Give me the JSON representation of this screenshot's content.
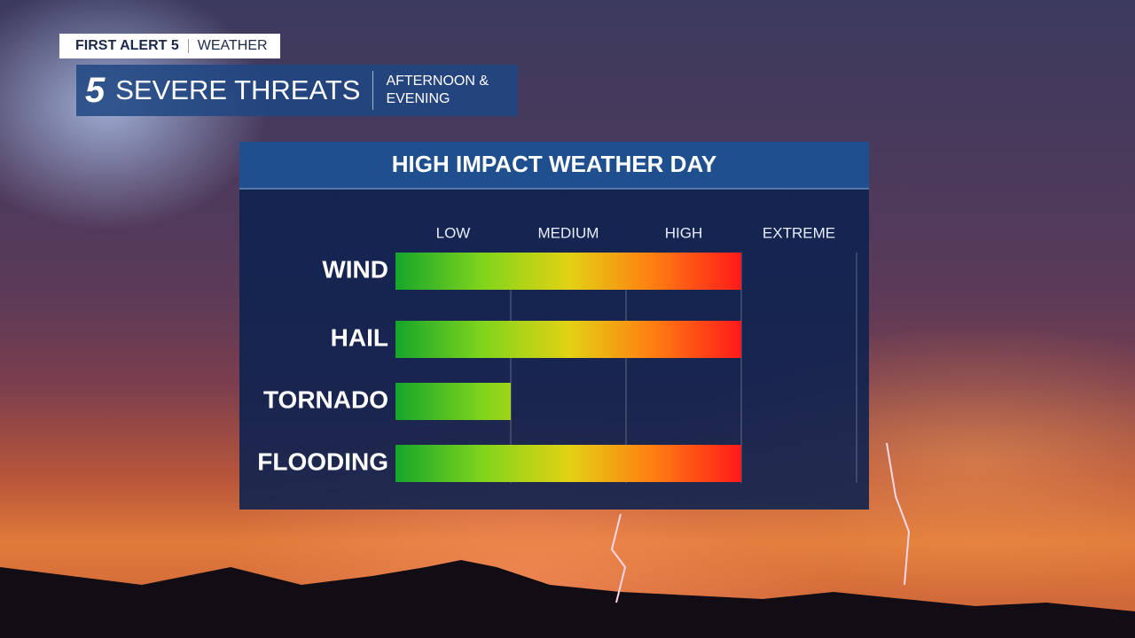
{
  "header": {
    "tag": "FIRST ALERT 5",
    "tag2": "WEATHER",
    "logo": "5",
    "title": "SEVERE THREATS",
    "subtitle": "AFTERNOON & EVENING"
  },
  "chart_data": {
    "type": "hbar",
    "title": "HIGH IMPACT WEATHER DAY",
    "categories": [
      "WIND",
      "HAIL",
      "TORNADO",
      "FLOODING"
    ],
    "values": [
      3,
      3,
      1,
      3
    ],
    "xlim": [
      0,
      4
    ],
    "xticks": [
      {
        "value": 1,
        "label": "LOW"
      },
      {
        "value": 2,
        "label": "MEDIUM"
      },
      {
        "value": 3,
        "label": "HIGH"
      },
      {
        "value": 4,
        "label": "EXTREME"
      }
    ],
    "gradient": [
      "#16a52c",
      "#7fd41c",
      "#e2d214",
      "#ff7c12",
      "#ff1a1a"
    ],
    "grid": true
  }
}
